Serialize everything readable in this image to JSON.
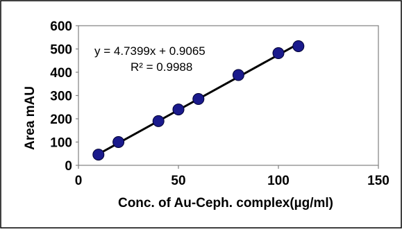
{
  "chart_data": {
    "type": "scatter",
    "xlabel": "Conc. of Au-Ceph. complex(µg/ml)",
    "ylabel": "Area mAU",
    "xlim": [
      0,
      150
    ],
    "ylim": [
      0,
      600
    ],
    "x_ticks": [
      "0",
      "50",
      "100",
      "150"
    ],
    "y_ticks": [
      "0",
      "100",
      "200",
      "300",
      "400",
      "500",
      "600"
    ],
    "grid": false,
    "legend": "none",
    "series": [
      {
        "x": [
          10,
          20,
          40,
          50,
          60,
          80,
          100,
          110
        ],
        "y": [
          46,
          100,
          190,
          240,
          285,
          388,
          482,
          512
        ],
        "color": "#1a1a8c",
        "marker": "circle"
      }
    ],
    "trendline": {
      "slope": 4.7399,
      "intercept": 0.9065,
      "x_range": [
        10,
        110
      ],
      "color": "#000000"
    },
    "annotations": {
      "equation": "y = 4.7399x + 0.9065",
      "r_squared": "R² = 0.9988"
    },
    "colors": {
      "marker_fill": "#1a1a8c",
      "plot_border": "#808080",
      "frame_border": "#000000"
    }
  }
}
